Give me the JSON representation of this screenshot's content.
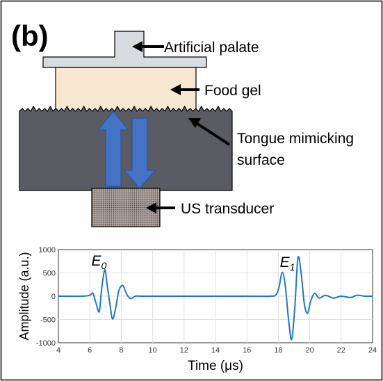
{
  "panel_label": "(b)",
  "schematic": {
    "labels": {
      "palate": "Artificial palate",
      "food_gel": "Food gel",
      "tongue_line1": "Tongue mimicking",
      "tongue_line2": "surface",
      "transducer": "US transducer"
    },
    "colors": {
      "palate": "#d6dce2",
      "food_gel": "#f7e6d0",
      "tongue": "#5a5b63",
      "wave_arrows": "#4472c4",
      "transducer": "#6a5a55",
      "pointer_arrows": "#000000"
    }
  },
  "chart_data": {
    "type": "line",
    "xlabel": "Time (μs)",
    "ylabel": "Amplitude (a.u.)",
    "xlim": [
      4,
      24
    ],
    "ylim": [
      -1000,
      1000
    ],
    "xticks": [
      4,
      6,
      8,
      10,
      12,
      14,
      16,
      18,
      20,
      22,
      24
    ],
    "yticks": [
      -1000,
      -500,
      0,
      500,
      1000
    ],
    "grid": true,
    "line_color": "#1f77c4",
    "annotations": [
      {
        "text": "E",
        "subscript": "0",
        "x": 6.1,
        "y": 660
      },
      {
        "text": "E",
        "subscript": "1",
        "x": 18.1,
        "y": 630
      }
    ],
    "series": [
      {
        "x": [
          4.0,
          5.5,
          6.0,
          6.2,
          6.4,
          6.6,
          6.75,
          6.95,
          7.1,
          7.3,
          7.45,
          7.65,
          7.85,
          8.1,
          8.35,
          8.6,
          8.9,
          9.3,
          10.0,
          12.0,
          14.0,
          16.0,
          17.5,
          17.85,
          18.05,
          18.25,
          18.45,
          18.65,
          18.85,
          19.05,
          19.25,
          19.45,
          19.65,
          19.85,
          20.05,
          20.3,
          20.6,
          21.0,
          21.5,
          22.0,
          22.6,
          23.0,
          23.5,
          24.0
        ],
        "y": [
          0,
          0,
          20,
          60,
          -150,
          -330,
          150,
          570,
          250,
          -220,
          -490,
          -250,
          120,
          230,
          40,
          -50,
          0,
          0,
          0,
          0,
          0,
          0,
          0,
          30,
          200,
          510,
          200,
          -500,
          -930,
          -250,
          820,
          500,
          -150,
          -370,
          -120,
          60,
          -40,
          20,
          -40,
          0,
          -30,
          20,
          0,
          0
        ]
      }
    ]
  }
}
